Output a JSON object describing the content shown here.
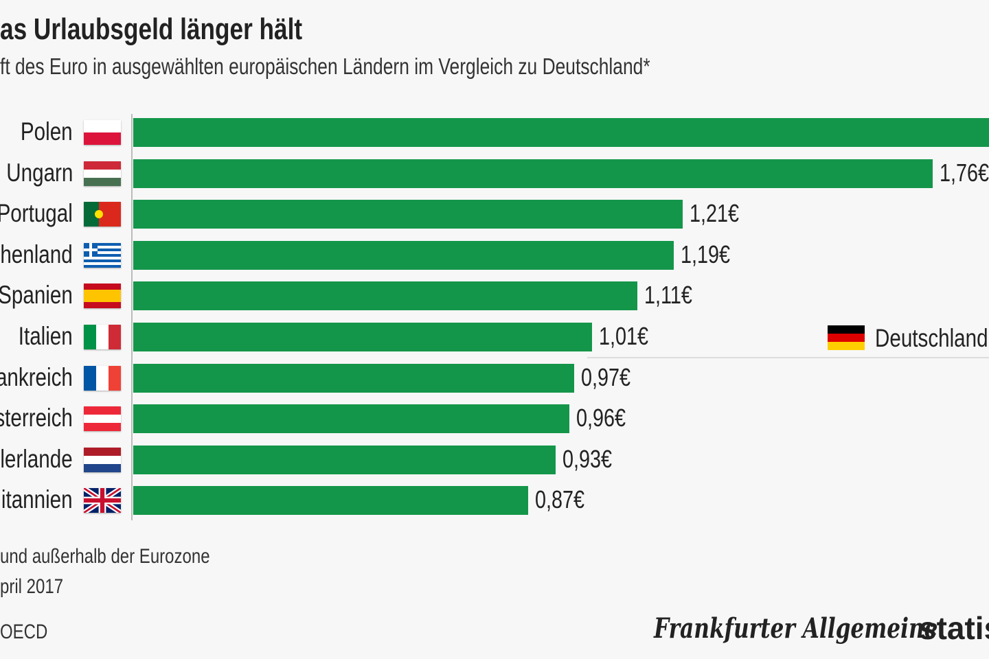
{
  "title": "as Urlaubsgeld länger hält",
  "subtitle": "ft des Euro in ausgewählten europäischen Ländern im Vergleich zu Deutschland*",
  "reference": {
    "label": "Deutschland",
    "value": 1.0,
    "flag": [
      "#000000",
      "#dd0000",
      "#ffce00"
    ]
  },
  "footnotes": [
    "und außerhalb der Eurozone",
    "pril 2017",
    "OECD"
  ],
  "logos": {
    "faz": "Frankfurter Allgemeine",
    "statista": "statis"
  },
  "colors": {
    "bar": "#14964a"
  },
  "chart_data": {
    "type": "bar",
    "orientation": "horizontal",
    "categories": [
      "Polen",
      "Ungarn",
      "Portugal",
      "henland",
      "Spanien",
      "Italien",
      "ankreich",
      "sterreich",
      "lerlande",
      "itannien"
    ],
    "values": [
      1.95,
      1.76,
      1.21,
      1.19,
      1.11,
      1.01,
      0.97,
      0.96,
      0.93,
      0.87
    ],
    "value_labels": [
      "",
      "1,76€",
      "1,21€",
      "1,19€",
      "1,11€",
      "1,01€",
      "0,97€",
      "0,96€",
      "0,93€",
      "0,87€"
    ],
    "flags": [
      {
        "type": "h",
        "colors": [
          "#ffffff",
          "#dc143c"
        ]
      },
      {
        "type": "h",
        "colors": [
          "#ce2939",
          "#ffffff",
          "#477050"
        ]
      },
      {
        "type": "pt",
        "colors": [
          "#046a38",
          "#da291c"
        ]
      },
      {
        "type": "gr",
        "colors": [
          "#0d5eaf",
          "#ffffff"
        ]
      },
      {
        "type": "es",
        "colors": [
          "#c60b1e",
          "#ffc400",
          "#c60b1e"
        ]
      },
      {
        "type": "v",
        "colors": [
          "#009246",
          "#ffffff",
          "#ce2b37"
        ]
      },
      {
        "type": "v",
        "colors": [
          "#0055a4",
          "#ffffff",
          "#ef4135"
        ]
      },
      {
        "type": "h",
        "colors": [
          "#ed2939",
          "#ffffff",
          "#ed2939"
        ]
      },
      {
        "type": "h",
        "colors": [
          "#ae1c28",
          "#ffffff",
          "#21468b"
        ]
      },
      {
        "type": "uk",
        "colors": [
          "#012169",
          "#ffffff",
          "#c8102e"
        ]
      }
    ],
    "xlim": [
      0,
      2.0
    ],
    "grid": false
  }
}
